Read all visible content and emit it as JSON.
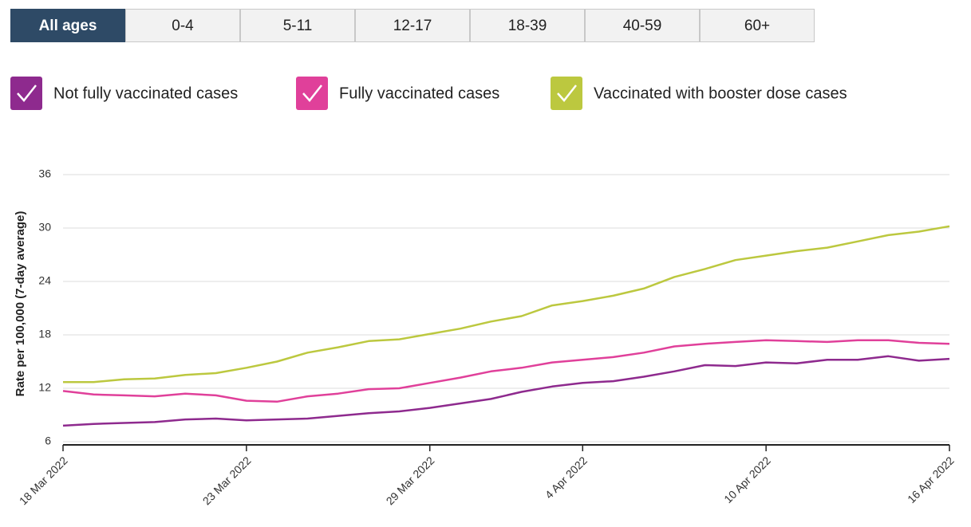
{
  "tabs": [
    "All ages",
    "0-4",
    "5-11",
    "12-17",
    "18-39",
    "40-59",
    "60+"
  ],
  "chart_data": {
    "type": "line",
    "y_label": "Rate per 100,000 (7-day average)",
    "categories": [
      "18 Mar 2022",
      null,
      null,
      null,
      null,
      null,
      "23 Mar 2022",
      null,
      null,
      null,
      null,
      null,
      "29 Mar 2022",
      null,
      null,
      null,
      null,
      "4 Apr 2022",
      null,
      null,
      null,
      null,
      null,
      "10 Apr 2022",
      null,
      null,
      null,
      null,
      null,
      "16 Apr 2022"
    ],
    "series": [
      {
        "name": "Not fully vaccinated cases",
        "color": "#8e2a8e",
        "values": [
          7.8,
          8.0,
          8.1,
          8.2,
          8.5,
          8.6,
          8.4,
          8.5,
          8.6,
          8.9,
          9.2,
          9.4,
          9.8,
          10.3,
          10.8,
          11.6,
          12.2,
          12.6,
          12.8,
          13.3,
          13.9,
          14.6,
          14.5,
          14.9,
          14.8,
          15.2,
          15.2,
          15.6,
          15.1,
          15.3
        ]
      },
      {
        "name": "Fully vaccinated cases",
        "color": "#e0409a",
        "values": [
          11.7,
          11.3,
          11.2,
          11.1,
          11.4,
          11.2,
          10.6,
          10.5,
          11.1,
          11.4,
          11.9,
          12.0,
          12.6,
          13.2,
          13.9,
          14.3,
          14.9,
          15.2,
          15.5,
          16.0,
          16.7,
          17.0,
          17.2,
          17.4,
          17.3,
          17.2,
          17.4,
          17.4,
          17.1,
          17.0
        ]
      },
      {
        "name": "Vaccinated with booster dose cases",
        "color": "#bcc83f",
        "values": [
          12.7,
          12.7,
          13.0,
          13.1,
          13.5,
          13.7,
          14.3,
          15.0,
          16.0,
          16.6,
          17.3,
          17.5,
          18.1,
          18.7,
          19.5,
          20.1,
          21.3,
          21.8,
          22.4,
          23.2,
          24.5,
          25.4,
          26.4,
          26.9,
          27.4,
          27.8,
          28.5,
          29.2,
          29.6,
          30.2
        ]
      }
    ],
    "ylim": [
      6,
      36
    ],
    "yticks": [
      6,
      12,
      18,
      24,
      30,
      36
    ],
    "grid": true
  }
}
